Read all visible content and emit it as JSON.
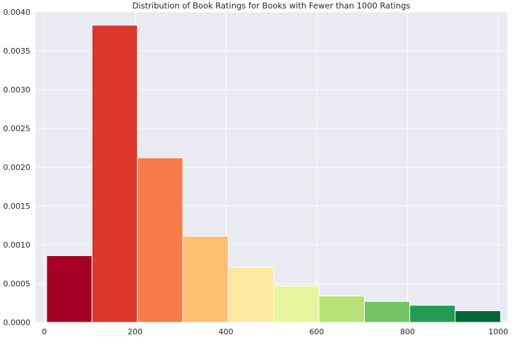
{
  "chart_data": {
    "type": "bar",
    "title": "Distribution of Book Ratings for Books with Fewer than 1000 Ratings",
    "xlabel": "",
    "ylabel": "",
    "xlim": [
      -20,
      1020
    ],
    "ylim": [
      0,
      0.004
    ],
    "grid": true,
    "bins": [
      {
        "x0": 5,
        "x1": 105,
        "value": 0.00086,
        "color": "#a50026"
      },
      {
        "x0": 105,
        "x1": 205,
        "value": 0.00383,
        "color": "#db382b"
      },
      {
        "x0": 205,
        "x1": 305,
        "value": 0.00212,
        "color": "#f57b4b"
      },
      {
        "x0": 305,
        "x1": 405,
        "value": 0.00111,
        "color": "#fdbe70"
      },
      {
        "x0": 405,
        "x1": 505,
        "value": 0.00071,
        "color": "#fee8a0"
      },
      {
        "x0": 505,
        "x1": 605,
        "value": 0.00047,
        "color": "#e8f59e"
      },
      {
        "x0": 605,
        "x1": 705,
        "value": 0.00034,
        "color": "#b7e075"
      },
      {
        "x0": 705,
        "x1": 805,
        "value": 0.00027,
        "color": "#74c464"
      },
      {
        "x0": 805,
        "x1": 905,
        "value": 0.00022,
        "color": "#229c52"
      },
      {
        "x0": 905,
        "x1": 1005,
        "value": 0.00015,
        "color": "#006837"
      }
    ],
    "xticks": [
      0,
      200,
      400,
      600,
      800,
      1000
    ],
    "xtick_labels": [
      "0",
      "200",
      "400",
      "600",
      "800",
      "1000"
    ],
    "yticks": [
      0,
      0.0005,
      0.001,
      0.0015,
      0.002,
      0.0025,
      0.003,
      0.0035,
      0.004
    ],
    "ytick_labels": [
      "0.0000",
      "0.0005",
      "0.0010",
      "0.0015",
      "0.0020",
      "0.0025",
      "0.0030",
      "0.0035",
      "0.0040"
    ],
    "colors": {
      "background": "#eaeaf2",
      "grid": "#ffffff",
      "text": "#262626"
    }
  }
}
